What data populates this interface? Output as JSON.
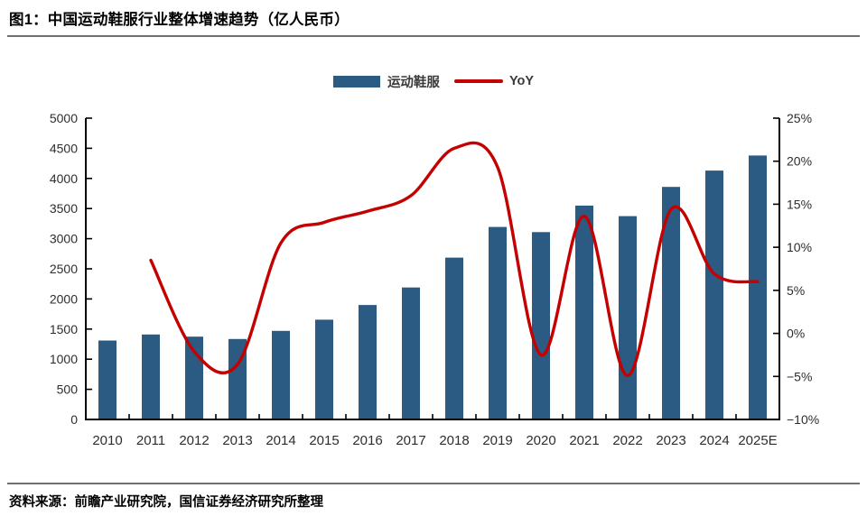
{
  "header": {
    "title": "图1：中国运动鞋服行业整体增速趋势（亿人民币）"
  },
  "legend": {
    "bar_label": "运动鞋服",
    "line_label": "YoY"
  },
  "source": {
    "text": "资料来源：前瞻产业研究院，国信证券经济研究所整理"
  },
  "colors": {
    "bar": "#2B5A83",
    "line": "#C40000",
    "axis": "#000000",
    "tick_text": "#2e2e2e",
    "rule": "#6f6f6f"
  },
  "chart_data": {
    "type": "bar",
    "title": "中国运动鞋服行业整体增速趋势（亿人民币）",
    "categories": [
      "2010",
      "2011",
      "2012",
      "2013",
      "2014",
      "2015",
      "2016",
      "2017",
      "2018",
      "2019",
      "2020",
      "2021",
      "2022",
      "2023",
      "2024",
      "2025E"
    ],
    "series": [
      {
        "name": "运动鞋服",
        "type": "bar",
        "axis": "left",
        "unit": "亿人民币",
        "values": [
          1310,
          1410,
          1375,
          1335,
          1470,
          1655,
          1900,
          2190,
          2685,
          3195,
          3110,
          3550,
          3375,
          3860,
          4130,
          4380
        ]
      },
      {
        "name": "YoY",
        "type": "line",
        "axis": "right",
        "unit": "%",
        "values": [
          null,
          8.5,
          -2.1,
          -3.6,
          10.5,
          12.9,
          14.2,
          16.0,
          21.5,
          19.3,
          -2.5,
          13.6,
          -4.9,
          14.4,
          6.9,
          6.0
        ]
      }
    ],
    "left_axis": {
      "min": 0,
      "max": 5000,
      "step": 500,
      "tick_labels": [
        "0",
        "500",
        "1000",
        "1500",
        "2000",
        "2500",
        "3000",
        "3500",
        "4000",
        "4500",
        "5000"
      ]
    },
    "right_axis": {
      "min": -10,
      "max": 25,
      "step": 5,
      "tick_labels": [
        "−10%",
        "−5%",
        "0%",
        "5%",
        "10%",
        "15%",
        "20%",
        "25%"
      ]
    },
    "grid": false,
    "legend_position": "top-center"
  }
}
